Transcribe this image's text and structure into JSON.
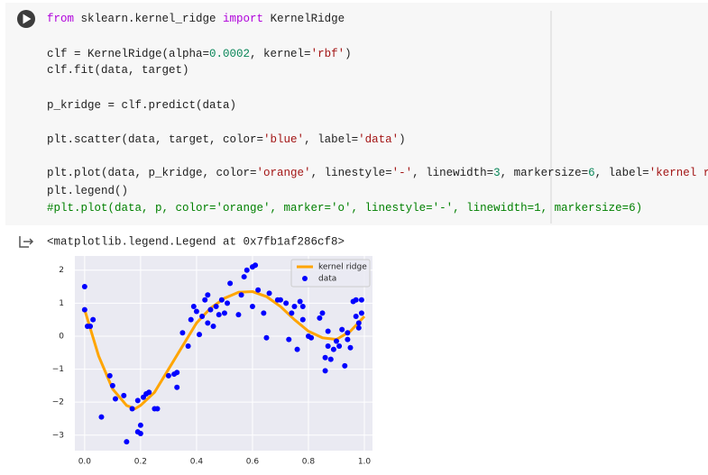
{
  "notebook": {
    "code_lines": [
      [
        {
          "text": "from",
          "color": "#af00db"
        },
        {
          "text": " sklearn.kernel_ridge ",
          "color": "#212121"
        },
        {
          "text": "import",
          "color": "#af00db"
        },
        {
          "text": " KernelRidge",
          "color": "#212121"
        }
      ],
      [
        {
          "text": "clf = KernelRidge(alpha=",
          "color": "#212121"
        },
        {
          "text": "0.0002",
          "color": "#098658"
        },
        {
          "text": ", kernel=",
          "color": "#212121"
        },
        {
          "text": "'rbf'",
          "color": "#a31515"
        },
        {
          "text": ")",
          "color": "#212121"
        }
      ],
      [
        {
          "text": "clf.fit(data, target)",
          "color": "#212121"
        }
      ],
      [
        {
          "text": "p_kridge = clf.predict(data)",
          "color": "#212121"
        }
      ],
      [
        {
          "text": "plt.scatter(data, target, color=",
          "color": "#212121"
        },
        {
          "text": "'blue'",
          "color": "#a31515"
        },
        {
          "text": ", label=",
          "color": "#212121"
        },
        {
          "text": "'data'",
          "color": "#a31515"
        },
        {
          "text": ")",
          "color": "#212121"
        }
      ],
      [
        {
          "text": "plt.plot(data, p_kridge, color=",
          "color": "#212121"
        },
        {
          "text": "'orange'",
          "color": "#a31515"
        },
        {
          "text": ", linestyle=",
          "color": "#212121"
        },
        {
          "text": "'-'",
          "color": "#a31515"
        },
        {
          "text": ", linewidth=",
          "color": "#212121"
        },
        {
          "text": "3",
          "color": "#098658"
        },
        {
          "text": ", markersize=",
          "color": "#212121"
        },
        {
          "text": "6",
          "color": "#098658"
        },
        {
          "text": ", label=",
          "color": "#212121"
        },
        {
          "text": "'kernel ridge'",
          "color": "#a31515"
        },
        {
          "text": ")",
          "color": "#212121"
        }
      ],
      [
        {
          "text": "plt.legend()",
          "color": "#212121"
        }
      ],
      [
        {
          "text": "#plt.plot(data, p, color='orange', marker='o', linestyle='-', linewidth=1, markersize=6)",
          "color": "#008000"
        }
      ]
    ],
    "output": "<matplotlib.legend.Legend at 0x7fb1af286cf8>"
  },
  "chart_data": {
    "type": "scatter",
    "xlim": [
      -0.035,
      1.029
    ],
    "ylim": [
      -3.47,
      2.43
    ],
    "xticks": [
      {
        "value": 0,
        "label": "0.0"
      },
      {
        "value": 0.2,
        "label": "0.2"
      },
      {
        "value": 0.4,
        "label": "0.4"
      },
      {
        "value": 0.6,
        "label": "0.6"
      },
      {
        "value": 0.8,
        "label": "0.8"
      },
      {
        "value": 1,
        "label": "1.0"
      }
    ],
    "yticks": [
      {
        "value": -3,
        "label": "−3"
      },
      {
        "value": -2,
        "label": "−2"
      },
      {
        "value": -1,
        "label": "−1"
      },
      0,
      1,
      2
    ],
    "grid": true,
    "legend": "upper right",
    "series": [
      {
        "name": "kernel ridge",
        "type": "line",
        "color": "#ffa500",
        "x": [
          0,
          0.05,
          0.1,
          0.15,
          0.18,
          0.2,
          0.25,
          0.3,
          0.35,
          0.4,
          0.45,
          0.5,
          0.55,
          0.6,
          0.65,
          0.7,
          0.75,
          0.8,
          0.85,
          0.9,
          0.95,
          1.0
        ],
        "values": [
          0.8,
          -0.6,
          -1.6,
          -2.1,
          -2.2,
          -2.1,
          -1.7,
          -1.0,
          -0.3,
          0.4,
          0.85,
          1.15,
          1.33,
          1.35,
          1.2,
          0.9,
          0.5,
          0.15,
          -0.05,
          -0.1,
          0.15,
          0.6
        ]
      },
      {
        "name": "data",
        "type": "scatter",
        "color": "#0000ff",
        "x": [
          0.0,
          0.0,
          0.01,
          0.02,
          0.03,
          0.06,
          0.09,
          0.1,
          0.11,
          0.14,
          0.15,
          0.17,
          0.19,
          0.19,
          0.2,
          0.2,
          0.21,
          0.22,
          0.23,
          0.25,
          0.26,
          0.3,
          0.32,
          0.33,
          0.33,
          0.35,
          0.37,
          0.38,
          0.39,
          0.4,
          0.41,
          0.42,
          0.43,
          0.44,
          0.44,
          0.45,
          0.46,
          0.47,
          0.48,
          0.49,
          0.5,
          0.51,
          0.52,
          0.55,
          0.56,
          0.57,
          0.58,
          0.6,
          0.61,
          0.6,
          0.62,
          0.64,
          0.65,
          0.66,
          0.69,
          0.7,
          0.72,
          0.73,
          0.74,
          0.75,
          0.76,
          0.77,
          0.78,
          0.78,
          0.8,
          0.81,
          0.84,
          0.85,
          0.86,
          0.86,
          0.87,
          0.88,
          0.89,
          0.9,
          0.91,
          0.92,
          0.93,
          0.94,
          0.95,
          0.96,
          0.97,
          0.97,
          0.98,
          0.98,
          0.99,
          0.99,
          0.94,
          0.87
        ],
        "values": [
          1.5,
          0.8,
          0.3,
          0.3,
          0.5,
          -2.45,
          -1.2,
          -1.5,
          -1.9,
          -1.8,
          -3.2,
          -2.2,
          -2.9,
          -1.95,
          -2.7,
          -2.95,
          -1.85,
          -1.75,
          -1.7,
          -2.2,
          -2.2,
          -1.2,
          -1.15,
          -1.1,
          -1.55,
          0.1,
          -0.3,
          0.5,
          0.9,
          0.75,
          0.05,
          0.6,
          1.1,
          1.25,
          0.4,
          0.8,
          0.3,
          0.9,
          0.65,
          1.1,
          0.7,
          1.0,
          1.6,
          0.65,
          1.25,
          1.8,
          2.0,
          2.1,
          2.15,
          0.9,
          1.4,
          0.7,
          -0.05,
          1.3,
          1.1,
          1.1,
          1.0,
          -0.1,
          0.7,
          0.9,
          -0.4,
          1.05,
          0.9,
          0.5,
          0.0,
          -0.05,
          0.55,
          0.7,
          -1.05,
          -0.65,
          0.15,
          -0.7,
          -0.4,
          -0.15,
          -0.3,
          0.2,
          -0.9,
          -0.1,
          -0.35,
          1.05,
          1.1,
          0.6,
          0.4,
          0.25,
          0.7,
          1.1,
          0.1,
          -0.3
        ]
      }
    ]
  }
}
